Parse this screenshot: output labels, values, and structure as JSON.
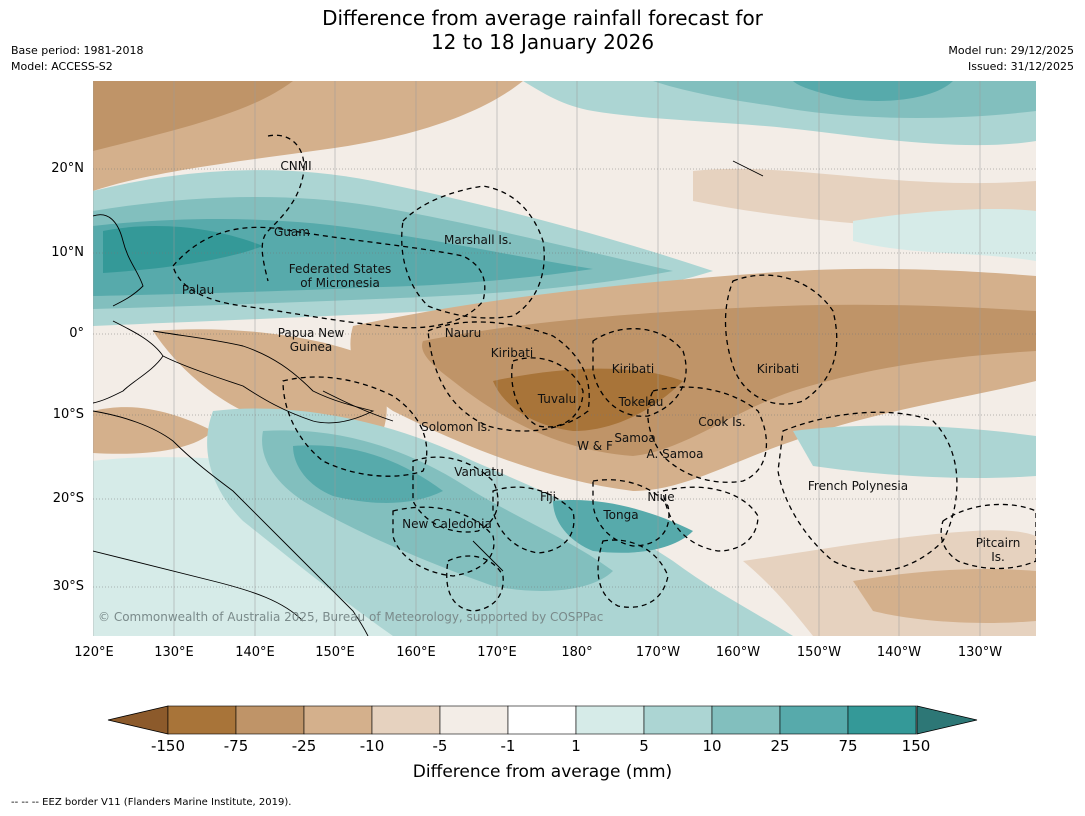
{
  "title": {
    "line1": "Difference from average rainfall forecast for",
    "line2": "12 to 18 January 2026"
  },
  "meta_left": {
    "base_period": "Base period: 1981-2018",
    "model": "Model: ACCESS-S2"
  },
  "meta_right": {
    "model_run": "Model run: 29/12/2025",
    "issued": "Issued: 31/12/2025"
  },
  "map": {
    "lat_labels": [
      "20°N",
      "10°N",
      "0°",
      "10°S",
      "20°S",
      "30°S"
    ],
    "lon_labels": [
      "120°E",
      "130°E",
      "140°E",
      "150°E",
      "160°E",
      "170°E",
      "180°",
      "170°W",
      "160°W",
      "150°W",
      "140°W",
      "130°W"
    ],
    "copyright": "© Commonwealth of Australia 2025, Bureau of Meteorology, supported by COSPPac",
    "regions": [
      "CNMI",
      "Guam",
      "Marshall Is.",
      "Federated States",
      "of Micronesia",
      "Palau",
      "Papua New",
      "Guinea",
      "Nauru",
      "Kiribati",
      "Kiribati",
      "Kiribati",
      "Tuvalu",
      "Tokelau",
      "Cook Is.",
      "Solomon Is.",
      "Samoa",
      "W & F",
      "A. Samoa",
      "Vanuatu",
      "Fiji",
      "Niue",
      "Tonga",
      "New Caledonia",
      "French Polynesia",
      "Pitcairn",
      "Is."
    ]
  },
  "colorbar": {
    "title": "Difference from average (mm)",
    "labels": [
      "-150",
      "-75",
      "-25",
      "-10",
      "-5",
      "-1",
      "1",
      "5",
      "10",
      "25",
      "75",
      "150"
    ],
    "colors": [
      "#8c5a2b",
      "#a87439",
      "#bf9468",
      "#d4b08c",
      "#e6d2bf",
      "#f3ede7",
      "#ffffff",
      "#d6ebe8",
      "#acd5d3",
      "#82bfbe",
      "#57aaab",
      "#349998",
      "#2d7776"
    ]
  },
  "footer": "--  --  -- EEZ border V11 (Flanders Marine Institute, 2019)."
}
